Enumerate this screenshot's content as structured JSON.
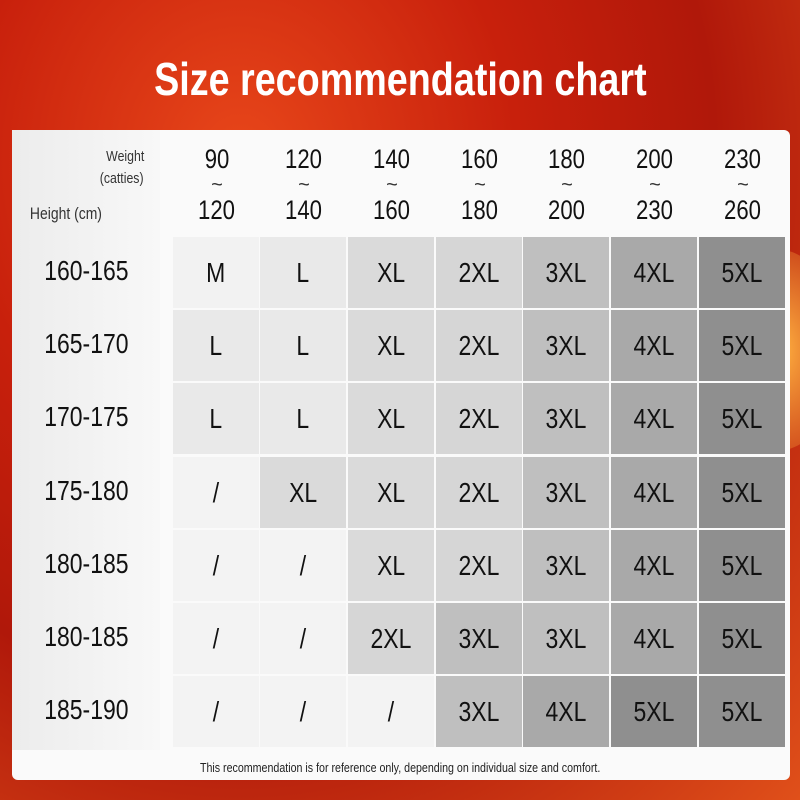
{
  "title": "Size recommendation chart",
  "header": {
    "weight_label": "Weight",
    "weight_unit": "(catties)",
    "height_label": "Height (cm)",
    "tilde": "~",
    "weight_ranges": [
      {
        "from": "90",
        "to": "120"
      },
      {
        "from": "120",
        "to": "140"
      },
      {
        "from": "140",
        "to": "160"
      },
      {
        "from": "160",
        "to": "180"
      },
      {
        "from": "180",
        "to": "200"
      },
      {
        "from": "200",
        "to": "230"
      },
      {
        "from": "230",
        "to": "260"
      }
    ]
  },
  "rows": [
    {
      "height": "160-165",
      "sizes": [
        "M",
        "L",
        "XL",
        "2XL",
        "3XL",
        "4XL",
        "5XL"
      ]
    },
    {
      "height": "165-170",
      "sizes": [
        "L",
        "L",
        "XL",
        "2XL",
        "3XL",
        "4XL",
        "5XL"
      ]
    },
    {
      "height": "170-175",
      "sizes": [
        "L",
        "L",
        "XL",
        "2XL",
        "3XL",
        "4XL",
        "5XL"
      ]
    },
    {
      "height": "175-180",
      "sizes": [
        "/",
        "XL",
        "XL",
        "2XL",
        "3XL",
        "4XL",
        "5XL"
      ]
    },
    {
      "height": "180-185",
      "sizes": [
        "/",
        "/",
        "XL",
        "2XL",
        "3XL",
        "4XL",
        "5XL"
      ]
    },
    {
      "height": "180-185",
      "sizes": [
        "/",
        "/",
        "2XL",
        "3XL",
        "3XL",
        "4XL",
        "5XL"
      ]
    },
    {
      "height": "185-190",
      "sizes": [
        "/",
        "/",
        "/",
        "3XL",
        "4XL",
        "5XL",
        "5XL"
      ]
    }
  ],
  "size_colors": {
    "/": "#f3f3f3",
    "M": "#f2f2f2",
    "L": "#e9e9e9",
    "XL": "#dadada",
    "2XL": "#d6d6d6",
    "3XL": "#bfbfbf",
    "4XL": "#a9a9a9",
    "5XL": "#8f8f8f"
  },
  "footnote": "This recommendation is for reference only, depending on individual size and comfort."
}
